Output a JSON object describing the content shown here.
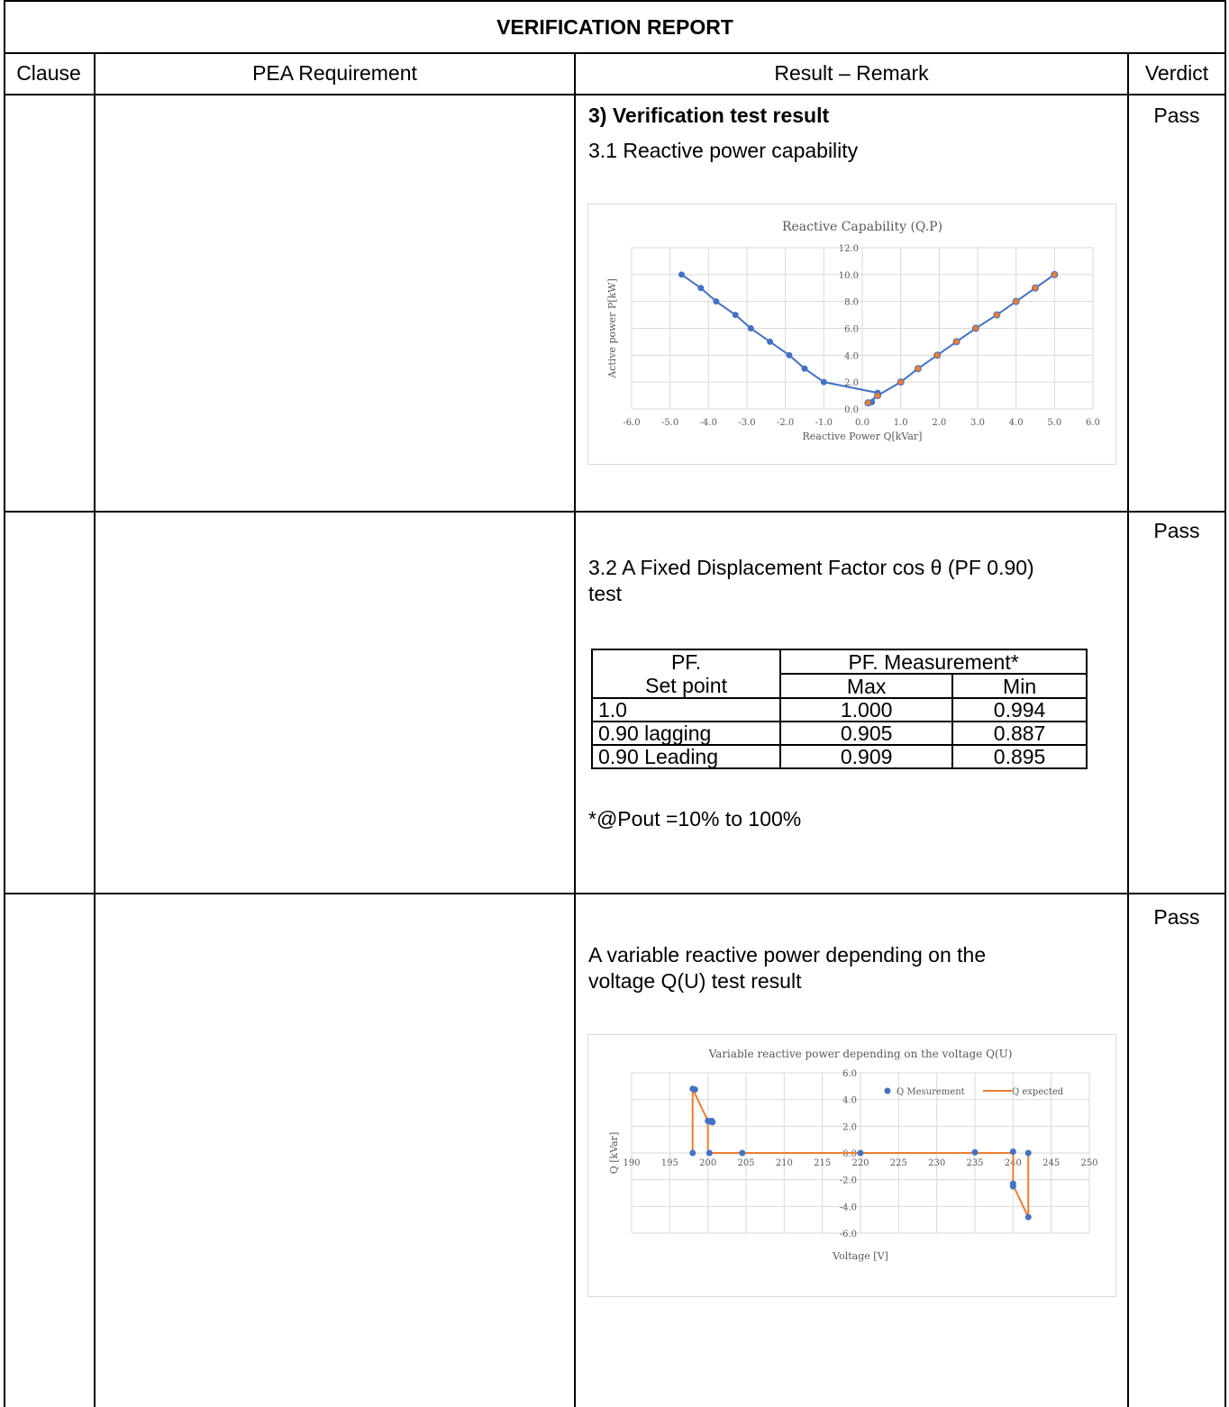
{
  "report": {
    "title": "VERIFICATION REPORT",
    "headers": {
      "clause": "Clause",
      "requirement": "PEA Requirement",
      "result": "Result – Remark",
      "verdict": "Verdict"
    }
  },
  "rows": [
    {
      "verdict": "Pass",
      "heading": "3)   Verification test result",
      "subheading": "3.1 Reactive power capability"
    },
    {
      "verdict": "Pass",
      "text_line1": "3.2 A Fixed Displacement Factor cos θ (PF 0.90)",
      "text_line2": "test",
      "note": "*@Pout =10% to 100%"
    },
    {
      "verdict": "Pass",
      "text_line1": "A variable reactive power depending on the",
      "text_line2": "voltage Q(U) test result"
    }
  ],
  "pf_table": {
    "head_setpoint_1": "PF.",
    "head_setpoint_2": "Set point",
    "head_measure": "PF. Measurement*",
    "head_max": "Max",
    "head_min": "Min",
    "rows": [
      {
        "set": "1.0",
        "max": "1.000",
        "min": "0.994"
      },
      {
        "set": "0.90 lagging",
        "max": "0.905",
        "min": "0.887"
      },
      {
        "set": "0.90 Leading",
        "max": "0.909",
        "min": "0.895"
      }
    ]
  },
  "chart_data": [
    {
      "type": "scatter",
      "title": "Reactive Capability (Q.P)",
      "xlabel": "Reactive Power Q[kVar]",
      "ylabel": "Active power P[kW]",
      "xlim": [
        -6,
        6
      ],
      "ylim": [
        0,
        12
      ],
      "x_ticks": [
        "-6.0",
        "-5.0",
        "-4.0",
        "-3.0",
        "-2.0",
        "-1.0",
        "0.0",
        "1.0",
        "2.0",
        "3.0",
        "4.0",
        "5.0",
        "6.0"
      ],
      "y_ticks": [
        "0.0",
        "2.0",
        "4.0",
        "6.0",
        "8.0",
        "10.0",
        "12.0"
      ],
      "grid": true,
      "colors": {
        "left": "#4472c4",
        "right": "#ed7d31",
        "line": "#4472c4"
      },
      "series": [
        {
          "points": [
            [
              -4.7,
              10
            ],
            [
              -4.2,
              9
            ],
            [
              -3.8,
              8
            ],
            [
              -3.3,
              7
            ],
            [
              -2.9,
              6
            ],
            [
              -2.4,
              5
            ],
            [
              -1.9,
              4
            ],
            [
              -1.5,
              3
            ],
            [
              -1.0,
              2
            ],
            [
              0.4,
              1.2
            ],
            [
              0.25,
              0.5
            ]
          ]
        },
        {
          "points": [
            [
              0.15,
              0.45
            ],
            [
              0.4,
              1
            ],
            [
              1.0,
              2
            ],
            [
              1.45,
              3
            ],
            [
              1.95,
              4
            ],
            [
              2.45,
              5
            ],
            [
              2.95,
              6
            ],
            [
              3.5,
              7
            ],
            [
              4.0,
              8
            ],
            [
              4.5,
              9
            ],
            [
              5.0,
              10
            ]
          ]
        }
      ]
    },
    {
      "type": "scatter",
      "title": "Variable reactive power depending on the voltage Q(U)",
      "xlabel": "Voltage [V]",
      "ylabel": "Q [kVar]",
      "xlim": [
        190,
        250
      ],
      "ylim": [
        -6,
        6
      ],
      "x_ticks": [
        "190",
        "195",
        "200",
        "205",
        "210",
        "215",
        "220",
        "225",
        "230",
        "235",
        "240",
        "245",
        "250"
      ],
      "y_ticks": [
        "-6.0",
        "-4.0",
        "-2.0",
        "0.0",
        "2.0",
        "4.0",
        "6.0"
      ],
      "grid": true,
      "legend_position": "top-right",
      "colors": {
        "measurement": "#4472c4",
        "expected": "#ed7d31"
      },
      "series": [
        {
          "name": "Q Mesurement",
          "style": "markers",
          "points": [
            [
              198,
              4.8
            ],
            [
              198.3,
              4.75
            ],
            [
              200,
              2.4
            ],
            [
              200.3,
              2.35
            ],
            [
              200.5,
              2.4
            ],
            [
              200.6,
              2.3
            ],
            [
              198,
              0
            ],
            [
              200.2,
              0
            ],
            [
              204.5,
              0
            ],
            [
              220,
              0
            ],
            [
              235,
              0.05
            ],
            [
              240,
              0.1
            ],
            [
              242,
              0
            ],
            [
              240,
              -2.3
            ],
            [
              240,
              -2.5
            ],
            [
              242,
              -4.8
            ]
          ]
        },
        {
          "name": "Q expected",
          "style": "line",
          "points": [
            [
              198,
              0
            ],
            [
              198,
              4.8
            ],
            [
              200,
              2.4
            ],
            [
              200,
              0
            ],
            [
              240,
              0
            ],
            [
              240,
              -2.4
            ],
            [
              242,
              -4.8
            ],
            [
              242,
              0
            ]
          ]
        }
      ]
    }
  ]
}
